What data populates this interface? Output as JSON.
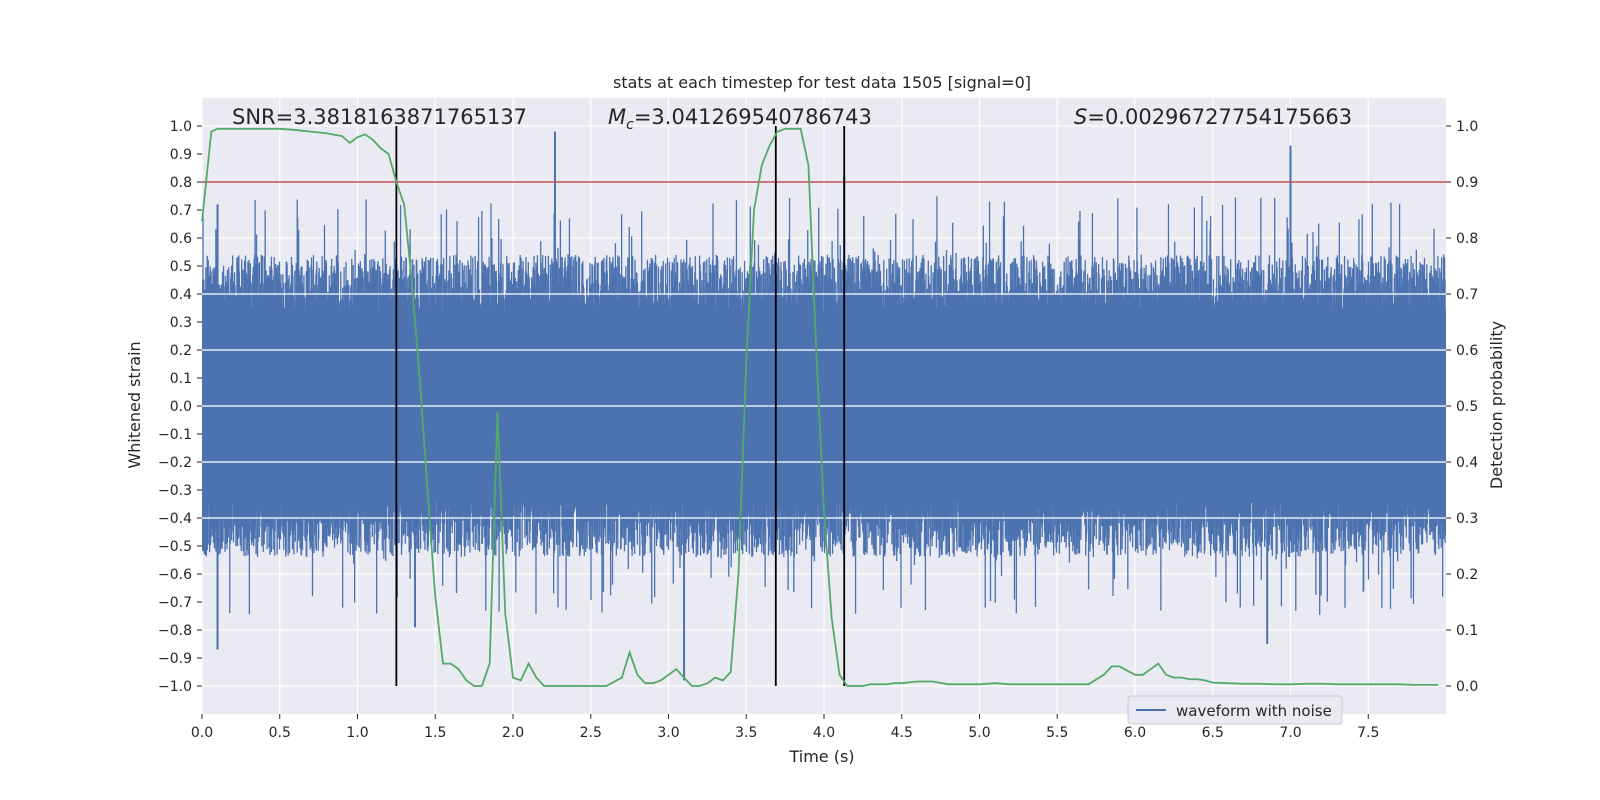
{
  "chart_data": {
    "type": "line",
    "title": "stats at each timestep for test data 1505 [signal=0]",
    "xlabel": "Time (s)",
    "ylabel": "Whitened strain",
    "y2label": "Detection probability",
    "xlim": [
      0.0,
      8.0
    ],
    "ylim": [
      -1.1,
      1.1
    ],
    "y2lim": [
      -0.05,
      1.05
    ],
    "x_ticks": [
      0.0,
      0.5,
      1.0,
      1.5,
      2.0,
      2.5,
      3.0,
      3.5,
      4.0,
      4.5,
      5.0,
      5.5,
      6.0,
      6.5,
      7.0,
      7.5
    ],
    "y_ticks": [
      -1.0,
      -0.9,
      -0.8,
      -0.7,
      -0.6,
      -0.5,
      -0.4,
      -0.3,
      -0.2,
      -0.1,
      0.0,
      0.1,
      0.2,
      0.3,
      0.4,
      0.5,
      0.6,
      0.7,
      0.8,
      0.9,
      1.0
    ],
    "y2_ticks": [
      0.0,
      0.1,
      0.2,
      0.3,
      0.4,
      0.5,
      0.6,
      0.7,
      0.8,
      0.9,
      1.0
    ],
    "grid": true,
    "legend": {
      "entries": [
        "waveform with noise"
      ],
      "placement": "lower-center-right"
    },
    "annotations": {
      "snr": "SNR=3.3818163871765137",
      "mc_prefix": "M",
      "mc_sub": "c",
      "mc_value": "=3.041269540786743",
      "s_prefix": "S",
      "s_value": "=0.00296727754175663"
    },
    "threshold_probability": 0.9,
    "vlines_s": [
      1.25,
      3.69,
      4.13
    ],
    "waveform": {
      "name": "waveform with noise",
      "duration_s": 8.0,
      "typical_envelope": [
        -0.45,
        0.45
      ],
      "peak_spikes": [
        {
          "x": 0.1,
          "y": 0.72
        },
        {
          "x": 0.1,
          "y": -0.87
        },
        {
          "x": 2.27,
          "y": 0.98
        },
        {
          "x": 3.1,
          "y": -0.98
        },
        {
          "x": 4.13,
          "y": 0.82
        },
        {
          "x": 7.0,
          "y": 0.93
        },
        {
          "x": 1.37,
          "y": -0.79
        },
        {
          "x": 6.85,
          "y": -0.85
        }
      ]
    },
    "detection_probability": {
      "name": "detection probability",
      "x": [
        0.0,
        0.06,
        0.1,
        0.2,
        0.3,
        0.4,
        0.5,
        0.6,
        0.7,
        0.8,
        0.9,
        0.95,
        1.0,
        1.05,
        1.1,
        1.15,
        1.2,
        1.25,
        1.3,
        1.35,
        1.4,
        1.45,
        1.5,
        1.55,
        1.6,
        1.65,
        1.7,
        1.75,
        1.8,
        1.85,
        1.9,
        1.95,
        2.0,
        2.05,
        2.1,
        2.15,
        2.2,
        2.25,
        2.3,
        2.4,
        2.5,
        2.6,
        2.7,
        2.75,
        2.8,
        2.85,
        2.9,
        2.95,
        3.0,
        3.05,
        3.1,
        3.15,
        3.2,
        3.25,
        3.3,
        3.35,
        3.4,
        3.45,
        3.5,
        3.55,
        3.6,
        3.65,
        3.7,
        3.75,
        3.8,
        3.85,
        3.9,
        3.95,
        4.0,
        4.05,
        4.1,
        4.15,
        4.2,
        4.25,
        4.3,
        4.35,
        4.4,
        4.45,
        4.5,
        4.6,
        4.7,
        4.8,
        4.9,
        5.0,
        5.1,
        5.2,
        5.3,
        5.4,
        5.5,
        5.6,
        5.7,
        5.8,
        5.85,
        5.9,
        6.0,
        6.05,
        6.1,
        6.15,
        6.2,
        6.25,
        6.3,
        6.35,
        6.4,
        6.45,
        6.5,
        6.6,
        6.7,
        6.8,
        6.9,
        7.0,
        7.1,
        7.2,
        7.3,
        7.4,
        7.5,
        7.6,
        7.7,
        7.8,
        7.9,
        7.95
      ],
      "y": [
        0.83,
        0.99,
        0.995,
        0.995,
        0.995,
        0.995,
        0.995,
        0.993,
        0.99,
        0.987,
        0.982,
        0.97,
        0.98,
        0.985,
        0.975,
        0.96,
        0.95,
        0.9,
        0.86,
        0.72,
        0.55,
        0.35,
        0.16,
        0.04,
        0.04,
        0.03,
        0.01,
        0.0,
        0.0,
        0.04,
        0.49,
        0.13,
        0.015,
        0.01,
        0.04,
        0.015,
        0.0,
        0.0,
        0.0,
        0.0,
        0.0,
        0.0,
        0.015,
        0.06,
        0.02,
        0.005,
        0.005,
        0.01,
        0.02,
        0.03,
        0.015,
        0.0,
        0.0,
        0.005,
        0.015,
        0.01,
        0.025,
        0.2,
        0.58,
        0.85,
        0.93,
        0.965,
        0.99,
        0.995,
        0.995,
        0.995,
        0.93,
        0.6,
        0.31,
        0.12,
        0.02,
        0.0,
        0.0,
        0.0,
        0.003,
        0.003,
        0.003,
        0.005,
        0.005,
        0.008,
        0.008,
        0.003,
        0.003,
        0.003,
        0.005,
        0.003,
        0.003,
        0.003,
        0.003,
        0.003,
        0.003,
        0.02,
        0.035,
        0.035,
        0.02,
        0.02,
        0.03,
        0.04,
        0.02,
        0.015,
        0.015,
        0.012,
        0.012,
        0.01,
        0.006,
        0.005,
        0.004,
        0.004,
        0.003,
        0.003,
        0.004,
        0.004,
        0.003,
        0.003,
        0.003,
        0.003,
        0.003,
        0.002,
        0.002,
        0.002
      ]
    },
    "colors": {
      "background": "#eaeaf2",
      "grid": "#ffffff",
      "waveform": "#4c72b0",
      "probability": "#55a868",
      "threshold": "#c44e52",
      "vline": "#000000"
    }
  }
}
